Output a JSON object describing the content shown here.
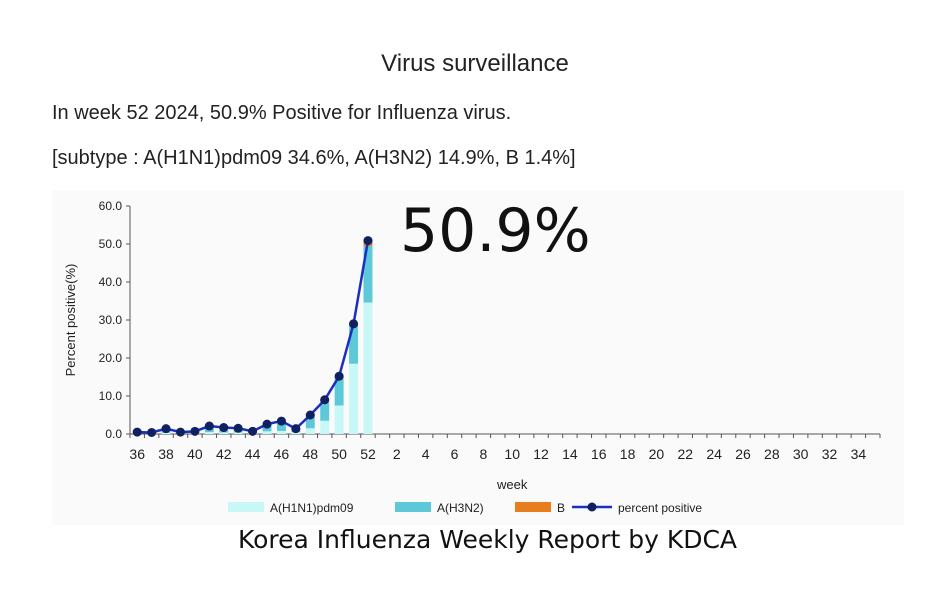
{
  "header": {
    "title": "Virus surveillance",
    "summary": "In week 52 2024, 50.9% Positive for Influenza virus.",
    "subtype": "[subtype : A(H1N1)pdm09 34.6%, A(H3N2) 14.9%, B 1.4%]"
  },
  "callout": "50.9%",
  "footer": "Korea Influenza Weekly Report by KDCA",
  "colors": {
    "h1n1": "#c8f7f7",
    "h3n2": "#5cc8d8",
    "b": "#e87d1e",
    "line": "#1a2fbf",
    "marker": "#102060"
  },
  "chart_data": {
    "type": "bar",
    "xlabel": "week",
    "ylabel": "Percent positive(%)",
    "ylim": [
      0,
      60
    ],
    "y_ticks": [
      "0.0",
      "10.0",
      "20.0",
      "30.0",
      "40.0",
      "50.0",
      "60.0"
    ],
    "x_tick_labels": [
      "36",
      "38",
      "40",
      "42",
      "44",
      "46",
      "48",
      "50",
      "52",
      "2",
      "4",
      "6",
      "8",
      "10",
      "12",
      "14",
      "16",
      "18",
      "20",
      "22",
      "24",
      "26",
      "28",
      "30",
      "32",
      "34"
    ],
    "categories": [
      "36",
      "37",
      "38",
      "39",
      "40",
      "41",
      "42",
      "43",
      "44",
      "45",
      "46",
      "47",
      "48",
      "49",
      "50",
      "51",
      "52"
    ],
    "series": [
      {
        "name": "A(H1N1)pdm09",
        "kind": "bar",
        "values": [
          0.1,
          0.1,
          0.3,
          0.1,
          0.2,
          0.5,
          0.4,
          0.4,
          0.2,
          0.7,
          0.8,
          0.5,
          1.5,
          3.5,
          7.5,
          18.5,
          34.6
        ]
      },
      {
        "name": "A(H3N2)",
        "kind": "bar",
        "values": [
          0.2,
          0.2,
          0.9,
          0.3,
          0.4,
          1.4,
          1.1,
          0.9,
          0.4,
          1.7,
          2.3,
          0.8,
          3.2,
          5.0,
          7.3,
          10.0,
          14.9
        ]
      },
      {
        "name": "B",
        "kind": "bar",
        "values": [
          0.1,
          0.1,
          0.2,
          0.1,
          0.1,
          0.2,
          0.2,
          0.2,
          0.1,
          0.2,
          0.3,
          0.1,
          0.3,
          0.5,
          0.4,
          0.5,
          1.4
        ]
      },
      {
        "name": "percent positive",
        "kind": "line",
        "values": [
          0.5,
          0.4,
          1.4,
          0.5,
          0.7,
          2.1,
          1.7,
          1.5,
          0.7,
          2.6,
          3.4,
          1.4,
          5.0,
          9.0,
          15.2,
          29.0,
          50.9
        ]
      }
    ],
    "legend": "bottom",
    "grid": false
  }
}
